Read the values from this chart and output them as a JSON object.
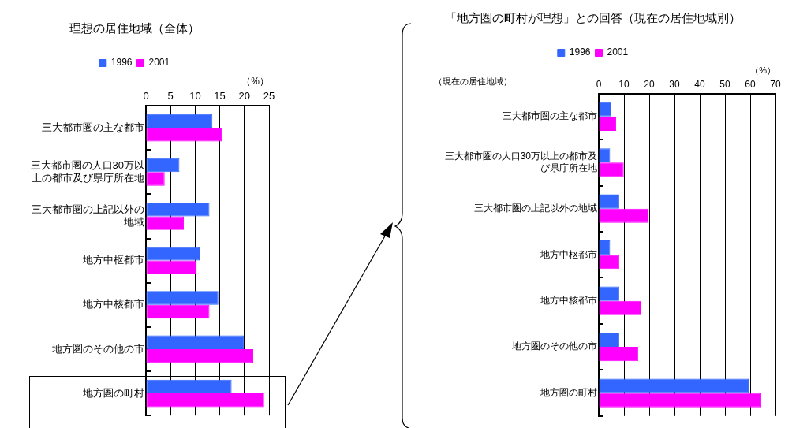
{
  "chart_data": [
    {
      "type": "bar",
      "orientation": "horizontal",
      "title": "理想の居住地域（全体）",
      "xlabel": "（%）",
      "categories": [
        "三大都市圏の主な都市",
        "三大都市圏の人口30万以上の都市及び県庁所在地",
        "三大都市圏の上記以外の地域",
        "地方中枢都市",
        "地方中核都市",
        "地方圏のその他の市",
        "地方圏の町村"
      ],
      "series": [
        {
          "name": "1996",
          "color": "#3366ff",
          "values": [
            13.5,
            6.8,
            12.9,
            10.9,
            14.7,
            19.9,
            17.4
          ]
        },
        {
          "name": "2001",
          "color": "#ff00ff",
          "values": [
            15.4,
            3.8,
            7.7,
            10.3,
            12.9,
            21.8,
            24.0
          ]
        }
      ],
      "xlim": [
        0,
        25
      ],
      "xticks": [
        0,
        5,
        10,
        15,
        20,
        25
      ],
      "grid": "x",
      "legend": "top"
    },
    {
      "type": "bar",
      "orientation": "horizontal",
      "title": "「地方圏の町村が理想」との回答（現在の居住地域別）",
      "xlabel": "（%）",
      "ylabel": "（現在の居住地域）",
      "categories": [
        "三大都市圏の主な都市",
        "三大都市圏の人口30万以上の都市及び県庁所在地",
        "三大都市圏の上記以外の地域",
        "地方中枢都市",
        "地方中核都市",
        "地方圏のその他の市",
        "地方圏の町村"
      ],
      "series": [
        {
          "name": "1996",
          "color": "#3366ff",
          "values": [
            5.0,
            4.5,
            8.1,
            4.5,
            8.1,
            8.1,
            59.4
          ]
        },
        {
          "name": "2001",
          "color": "#ff00ff",
          "values": [
            6.9,
            9.9,
            19.8,
            8.1,
            16.9,
            15.6,
            64.4
          ]
        }
      ],
      "xlim": [
        0,
        70
      ],
      "xticks": [
        0,
        10,
        20,
        30,
        40,
        50,
        60,
        70
      ],
      "grid": "x",
      "legend": "top"
    }
  ]
}
